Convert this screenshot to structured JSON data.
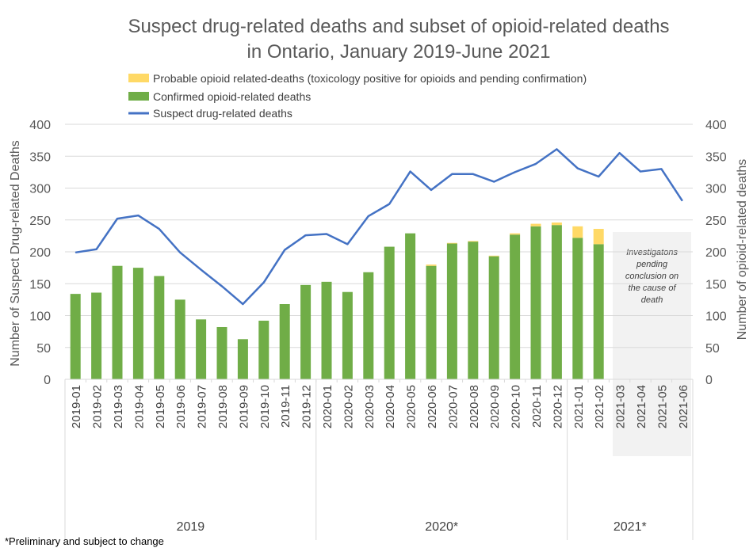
{
  "chart_data": {
    "type": "bar",
    "title_lines": [
      "Suspect drug-related deaths and subset of opioid-related deaths",
      "in Ontario, January 2019-June 2021"
    ],
    "ylabel_left": "Number of Suspect Drug-related Deaths",
    "ylabel_right": "Number of opioid-related deaths",
    "ylim": [
      0,
      400
    ],
    "yticks": [
      0,
      50,
      100,
      150,
      200,
      250,
      300,
      350,
      400
    ],
    "grid": true,
    "legend_position": "top",
    "categories": [
      "2019-01",
      "2019-02",
      "2019-03",
      "2019-04",
      "2019-05",
      "2019-06",
      "2019-07",
      "2019-08",
      "2019-09",
      "2019-10",
      "2019-11",
      "2019-12",
      "2020-01",
      "2020-02",
      "2020-03",
      "2020-04",
      "2020-05",
      "2020-06",
      "2020-07",
      "2020-08",
      "2020-09",
      "2020-10",
      "2020-11",
      "2020-12",
      "2021-01",
      "2021-02",
      "2021-03",
      "2021-04",
      "2021-05",
      "2021-06"
    ],
    "groups": [
      {
        "label": "2019",
        "count": 12
      },
      {
        "label": "2020*",
        "count": 12
      },
      {
        "label": "2021*",
        "count": 6
      }
    ],
    "series": [
      {
        "name": "Probable opioid related-deaths (toxicology positive for opioids and pending confirmation)",
        "type": "stacked-bar",
        "color": "#FFD966",
        "values": [
          0,
          0,
          0,
          0,
          0,
          0,
          0,
          0,
          0,
          0,
          0,
          0,
          0,
          0,
          0,
          0,
          0,
          2,
          1,
          1,
          1,
          2,
          4,
          4,
          18,
          24,
          null,
          null,
          null,
          null
        ]
      },
      {
        "name": "Confirmed opioid-related deaths",
        "type": "bar",
        "color": "#70AD47",
        "values": [
          134,
          136,
          178,
          175,
          162,
          125,
          94,
          82,
          63,
          92,
          118,
          148,
          153,
          137,
          168,
          208,
          229,
          178,
          213,
          216,
          193,
          227,
          240,
          242,
          222,
          212,
          null,
          null,
          null,
          null
        ]
      },
      {
        "name": "Suspect drug-related deaths",
        "type": "line",
        "color": "#4472C4",
        "values": [
          199,
          204,
          252,
          257,
          236,
          199,
          172,
          146,
          118,
          152,
          203,
          226,
          228,
          212,
          256,
          275,
          326,
          297,
          322,
          322,
          310,
          325,
          338,
          361,
          331,
          318,
          355,
          326,
          330,
          280
        ]
      }
    ],
    "annotation": {
      "text_lines": [
        "Investigatons",
        "pending",
        "conclusion on",
        "the cause of",
        "death"
      ],
      "start_category": "2021-03",
      "end_category": "2021-06",
      "color": "#F2F2F2"
    },
    "footnote": "*Preliminary and subject to change"
  }
}
